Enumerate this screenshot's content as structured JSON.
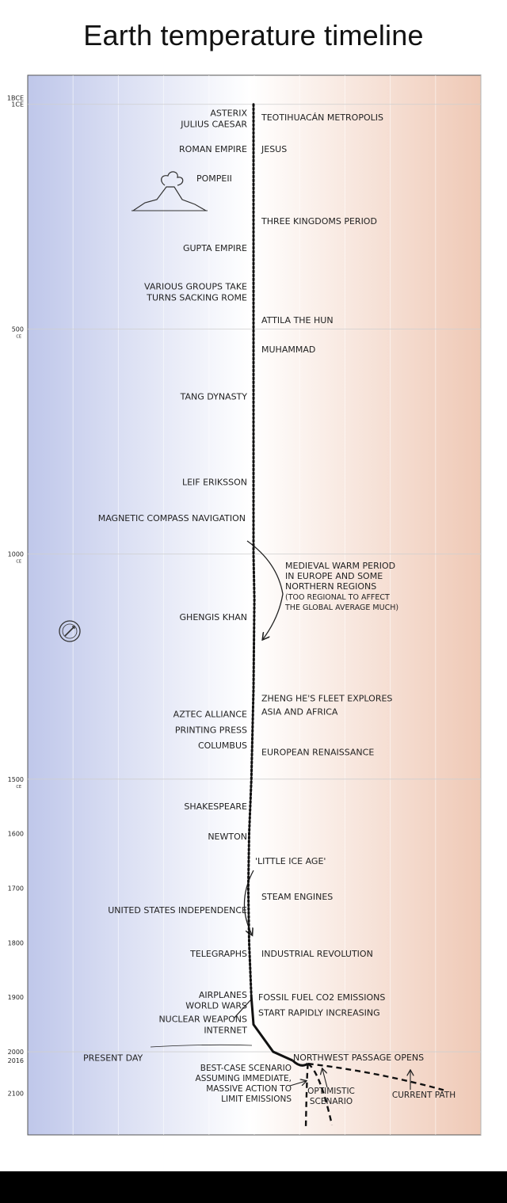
{
  "page": {
    "title": "Earth temperature timeline"
  },
  "chart_data": {
    "type": "line",
    "title": "Earth temperature timeline",
    "year_range": [
      1,
      2100
    ],
    "gradient_colors": [
      "#bfc7ea",
      "#ffffff",
      "#efc9b6"
    ],
    "axis_labels": [
      {
        "year": 0,
        "text": "1BCE"
      },
      {
        "year": 1,
        "text": "1CE"
      },
      {
        "year": 500,
        "text": "500",
        "sub": "CE"
      },
      {
        "year": 1000,
        "text": "1000",
        "sub": "CE"
      },
      {
        "year": 1500,
        "text": "1500",
        "sub": "CE"
      },
      {
        "year": 1600,
        "text": "1600"
      },
      {
        "year": 1700,
        "text": "1700"
      },
      {
        "year": 1800,
        "text": "1800"
      },
      {
        "year": 1900,
        "text": "1900"
      },
      {
        "year": 2000,
        "text": "2000"
      },
      {
        "year": 2016,
        "text": "2016"
      },
      {
        "year": 2100,
        "text": "2100"
      }
    ],
    "temperature_path": [
      {
        "year": 1,
        "t": 0.0
      },
      {
        "year": 1000,
        "t": 0.0
      },
      {
        "year": 1100,
        "t": 0.02
      },
      {
        "year": 1300,
        "t": 0.0
      },
      {
        "year": 1500,
        "t": -0.05
      },
      {
        "year": 1600,
        "t": -0.1
      },
      {
        "year": 1700,
        "t": -0.12
      },
      {
        "year": 1800,
        "t": -0.1
      },
      {
        "year": 1900,
        "t": -0.05
      },
      {
        "year": 1950,
        "t": 0.0
      },
      {
        "year": 2000,
        "t": 0.45
      },
      {
        "year": 2016,
        "t": 0.9
      }
    ],
    "scenarios": [
      {
        "label": "BEST-CASE SCENARIO ASSUMING IMMEDIATE, MASSIVE ACTION TO LIMIT EMISSIONS",
        "end": 1.2
      },
      {
        "label": "OPTIMISTIC SCENARIO",
        "end": 1.8
      },
      {
        "label": "CURRENT PATH",
        "end": 4.0
      }
    ],
    "events_left": [
      {
        "year": 20,
        "text": "ASTERIX"
      },
      {
        "year": 45,
        "text": "JULIUS CAESAR"
      },
      {
        "year": 100,
        "text": "ROMAN EMPIRE"
      },
      {
        "year": 165,
        "text": "POMPEII"
      },
      {
        "year": 320,
        "text": "GUPTA EMPIRE"
      },
      {
        "year": 405,
        "text": "VARIOUS GROUPS TAKE"
      },
      {
        "year": 430,
        "text": "TURNS SACKING ROME"
      },
      {
        "year": 650,
        "text": "TANG DYNASTY"
      },
      {
        "year": 840,
        "text": "LEIF ERIKSSON"
      },
      {
        "year": 920,
        "text": "MAGNETIC COMPASS NAVIGATION"
      },
      {
        "year": 1140,
        "text": "GHENGIS KHAN"
      },
      {
        "year": 1355,
        "text": "AZTEC ALLIANCE"
      },
      {
        "year": 1390,
        "text": "PRINTING PRESS"
      },
      {
        "year": 1425,
        "text": "COLUMBUS"
      },
      {
        "year": 1550,
        "text": "SHAKESPEARE"
      },
      {
        "year": 1605,
        "text": "NEWTON"
      },
      {
        "year": 1740,
        "text": "UNITED STATES INDEPENDENCE"
      },
      {
        "year": 1820,
        "text": "TELEGRAPHS"
      },
      {
        "year": 1895,
        "text": "AIRPLANES"
      },
      {
        "year": 1915,
        "text": "WORLD WARS"
      },
      {
        "year": 1940,
        "text": "NUCLEAR WEAPONS"
      },
      {
        "year": 1960,
        "text": "INTERNET"
      },
      {
        "year": 2025,
        "text": "PRESENT DAY"
      }
    ],
    "events_right": [
      {
        "year": 30,
        "text": "TEOTIHUACÁN METROPOLIS"
      },
      {
        "year": 100,
        "text": "JESUS"
      },
      {
        "year": 260,
        "text": "THREE KINGDOMS PERIOD"
      },
      {
        "year": 480,
        "text": "ATTILA THE HUN"
      },
      {
        "year": 545,
        "text": "MUHAMMAD"
      },
      {
        "year": 1320,
        "text": "ZHENG HE'S FLEET EXPLORES"
      },
      {
        "year": 1350,
        "text": "ASIA AND AFRICA"
      },
      {
        "year": 1440,
        "text": "EUROPEAN RENAISSANCE"
      },
      {
        "year": 1650,
        "text": "'LITTLE ICE AGE'"
      },
      {
        "year": 1715,
        "text": "STEAM ENGINES"
      },
      {
        "year": 1820,
        "text": "INDUSTRIAL REVOLUTION"
      },
      {
        "year": 1900,
        "text": "FOSSIL FUEL CO2 EMISSIONS"
      },
      {
        "year": 1928,
        "text": "START RAPIDLY INCREASING"
      },
      {
        "year": 2010,
        "text": "NORTHWEST PASSAGE OPENS"
      }
    ],
    "medieval_note": [
      "MEDIEVAL WARM PERIOD",
      "IN EUROPE AND SOME",
      "NORTHERN REGIONS",
      "(TOO REGIONAL TO AFFECT",
      "THE GLOBAL AVERAGE MUCH)"
    ],
    "scenario_labels": {
      "best_case": [
        "BEST-CASE SCENARIO",
        "ASSUMING IMMEDIATE,",
        "MASSIVE ACTION TO",
        "LIMIT EMISSIONS"
      ],
      "optimistic": [
        "OPTIMISTIC",
        "SCENARIO"
      ],
      "current": [
        "CURRENT PATH"
      ]
    }
  }
}
